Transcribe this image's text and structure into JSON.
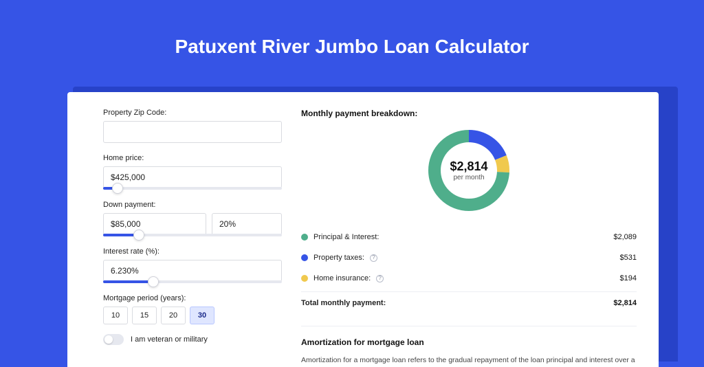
{
  "page": {
    "title": "Patuxent River Jumbo Loan Calculator",
    "bg_color": "#3654e6",
    "shadow_color": "#2742c8",
    "panel_color": "#ffffff"
  },
  "form": {
    "zip": {
      "label": "Property Zip Code:",
      "value": ""
    },
    "price": {
      "label": "Home price:",
      "value": "$425,000",
      "slider_pct": 8
    },
    "down": {
      "label": "Down payment:",
      "amount": "$85,000",
      "percent": "20%",
      "slider_pct": 20
    },
    "rate": {
      "label": "Interest rate (%):",
      "value": "6.230%",
      "slider_pct": 28
    },
    "period": {
      "label": "Mortgage period (years):",
      "options": [
        "10",
        "15",
        "20",
        "30"
      ],
      "selected": "30"
    },
    "veteran": {
      "label": "I am veteran or military",
      "on": false
    }
  },
  "breakdown": {
    "title": "Monthly payment breakdown:",
    "center_amount": "$2,814",
    "center_sub": "per month",
    "items": [
      {
        "label": "Principal & Interest:",
        "value": "$2,089",
        "color": "#4fae8b",
        "pct": 74.2,
        "info": false
      },
      {
        "label": "Property taxes:",
        "value": "$531",
        "color": "#3654e6",
        "pct": 18.9,
        "info": true
      },
      {
        "label": "Home insurance:",
        "value": "$194",
        "color": "#f0c94e",
        "pct": 6.9,
        "info": true
      }
    ],
    "total_label": "Total monthly payment:",
    "total_value": "$2,814",
    "donut": {
      "stroke_width": 18,
      "radius": 50,
      "bg": "#f2f3f7"
    }
  },
  "amortization": {
    "title": "Amortization for mortgage loan",
    "text": "Amortization for a mortgage loan refers to the gradual repayment of the loan principal and interest over a specified"
  }
}
